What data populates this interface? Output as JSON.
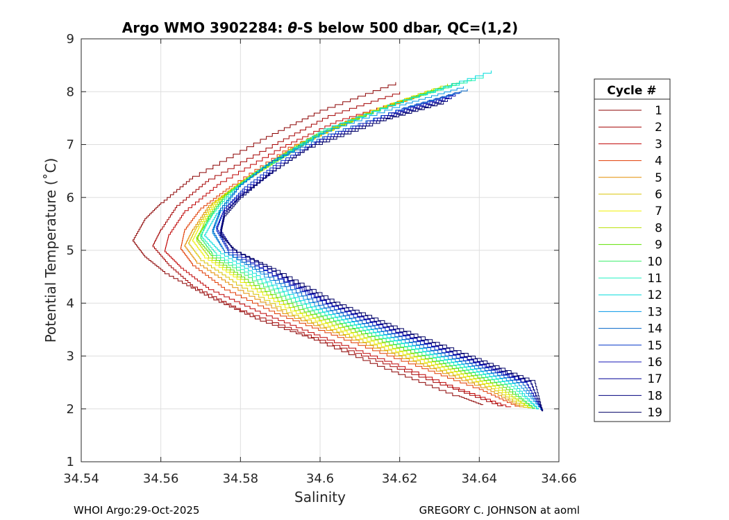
{
  "chart_data": {
    "type": "line",
    "title_prefix": "Argo WMO 3902284: ",
    "title_symbol": "θ",
    "title_suffix": "-S below 500 dbar,  QC=(1,2)",
    "xlabel": "Salinity",
    "ylabel": "Potential Temperature (˚C)",
    "xlim": [
      34.54,
      34.66
    ],
    "ylim": [
      1,
      9
    ],
    "xticks": [
      34.54,
      34.56,
      34.58,
      34.6,
      34.62,
      34.64,
      34.66
    ],
    "xtick_labels": [
      "34.54",
      "34.56",
      "34.58",
      "34.6",
      "34.62",
      "34.64",
      "34.66"
    ],
    "yticks": [
      1,
      2,
      3,
      4,
      5,
      6,
      7,
      8,
      9
    ],
    "ytick_labels": [
      "1",
      "2",
      "3",
      "4",
      "5",
      "6",
      "7",
      "8",
      "9"
    ],
    "grid": true,
    "legend_title": "Cycle #",
    "legend_position": "outside-right",
    "series": [
      {
        "name": "1",
        "color": "#8b0000",
        "points": [
          [
            34.619,
            8.18
          ],
          [
            34.6,
            7.65
          ],
          [
            34.585,
            7.1
          ],
          [
            34.568,
            6.4
          ],
          [
            34.56,
            5.9
          ],
          [
            34.556,
            5.6
          ],
          [
            34.553,
            5.2
          ],
          [
            34.556,
            4.9
          ],
          [
            34.561,
            4.6
          ],
          [
            34.572,
            4.15
          ],
          [
            34.585,
            3.7
          ],
          [
            34.6,
            3.3
          ],
          [
            34.618,
            2.75
          ],
          [
            34.635,
            2.25
          ],
          [
            34.641,
            2.08
          ]
        ]
      },
      {
        "name": "2",
        "color": "#a30000",
        "points": [
          [
            34.62,
            8.0
          ],
          [
            34.602,
            7.55
          ],
          [
            34.588,
            7.0
          ],
          [
            34.572,
            6.35
          ],
          [
            34.564,
            5.85
          ],
          [
            34.56,
            5.4
          ],
          [
            34.558,
            5.1
          ],
          [
            34.562,
            4.75
          ],
          [
            34.568,
            4.35
          ],
          [
            34.58,
            3.9
          ],
          [
            34.596,
            3.45
          ],
          [
            34.614,
            2.95
          ],
          [
            34.632,
            2.45
          ],
          [
            34.646,
            2.06
          ]
        ]
      },
      {
        "name": "3",
        "color": "#bf0000",
        "points": [
          [
            34.621,
            7.85
          ],
          [
            34.604,
            7.45
          ],
          [
            34.59,
            6.95
          ],
          [
            34.575,
            6.3
          ],
          [
            34.566,
            5.75
          ],
          [
            34.562,
            5.3
          ],
          [
            34.561,
            5.0
          ],
          [
            34.565,
            4.7
          ],
          [
            34.572,
            4.3
          ],
          [
            34.585,
            3.85
          ],
          [
            34.6,
            3.4
          ],
          [
            34.618,
            2.9
          ],
          [
            34.635,
            2.4
          ],
          [
            34.648,
            2.04
          ]
        ]
      },
      {
        "name": "4",
        "color": "#e03a00",
        "points": [
          [
            34.625,
            7.95
          ],
          [
            34.608,
            7.5
          ],
          [
            34.592,
            6.95
          ],
          [
            34.578,
            6.25
          ],
          [
            34.57,
            5.8
          ],
          [
            34.566,
            5.4
          ],
          [
            34.565,
            5.05
          ],
          [
            34.568,
            4.75
          ],
          [
            34.576,
            4.3
          ],
          [
            34.59,
            3.8
          ],
          [
            34.606,
            3.35
          ],
          [
            34.624,
            2.85
          ],
          [
            34.64,
            2.4
          ],
          [
            34.65,
            2.05
          ]
        ]
      },
      {
        "name": "5",
        "color": "#e38d00",
        "points": [
          [
            34.627,
            8.0
          ],
          [
            34.61,
            7.55
          ],
          [
            34.594,
            7.0
          ],
          [
            34.58,
            6.3
          ],
          [
            34.572,
            5.85
          ],
          [
            34.568,
            5.4
          ],
          [
            34.566,
            5.1
          ],
          [
            34.569,
            4.8
          ],
          [
            34.578,
            4.35
          ],
          [
            34.592,
            3.8
          ],
          [
            34.608,
            3.35
          ],
          [
            34.626,
            2.85
          ],
          [
            34.642,
            2.4
          ],
          [
            34.651,
            2.04
          ]
        ]
      },
      {
        "name": "6",
        "color": "#d9c300",
        "points": [
          [
            34.628,
            8.05
          ],
          [
            34.611,
            7.6
          ],
          [
            34.595,
            7.05
          ],
          [
            34.581,
            6.35
          ],
          [
            34.573,
            5.9
          ],
          [
            34.569,
            5.45
          ],
          [
            34.567,
            5.15
          ],
          [
            34.57,
            4.85
          ],
          [
            34.579,
            4.4
          ],
          [
            34.593,
            3.82
          ],
          [
            34.609,
            3.36
          ],
          [
            34.627,
            2.86
          ],
          [
            34.643,
            2.42
          ],
          [
            34.652,
            2.03
          ]
        ]
      },
      {
        "name": "7",
        "color": "#f0f000",
        "points": [
          [
            34.63,
            8.1
          ],
          [
            34.613,
            7.65
          ],
          [
            34.597,
            7.1
          ],
          [
            34.582,
            6.4
          ],
          [
            34.574,
            5.95
          ],
          [
            34.57,
            5.5
          ],
          [
            34.568,
            5.2
          ],
          [
            34.571,
            4.9
          ],
          [
            34.58,
            4.45
          ],
          [
            34.594,
            3.85
          ],
          [
            34.61,
            3.38
          ],
          [
            34.628,
            2.88
          ],
          [
            34.644,
            2.43
          ],
          [
            34.653,
            2.03
          ]
        ]
      },
      {
        "name": "8",
        "color": "#b8e000",
        "points": [
          [
            34.632,
            8.15
          ],
          [
            34.615,
            7.7
          ],
          [
            34.598,
            7.15
          ],
          [
            34.583,
            6.45
          ],
          [
            34.575,
            6.0
          ],
          [
            34.571,
            5.55
          ],
          [
            34.569,
            5.2
          ],
          [
            34.572,
            4.9
          ],
          [
            34.581,
            4.45
          ],
          [
            34.595,
            3.86
          ],
          [
            34.611,
            3.4
          ],
          [
            34.629,
            2.89
          ],
          [
            34.645,
            2.44
          ],
          [
            34.653,
            2.02
          ]
        ]
      },
      {
        "name": "9",
        "color": "#5de000",
        "points": [
          [
            34.635,
            8.2
          ],
          [
            34.617,
            7.75
          ],
          [
            34.599,
            7.2
          ],
          [
            34.584,
            6.5
          ],
          [
            34.576,
            6.05
          ],
          [
            34.572,
            5.6
          ],
          [
            34.569,
            5.25
          ],
          [
            34.573,
            4.9
          ],
          [
            34.582,
            4.45
          ],
          [
            34.596,
            3.88
          ],
          [
            34.612,
            3.42
          ],
          [
            34.63,
            2.9
          ],
          [
            34.646,
            2.45
          ],
          [
            34.654,
            2.02
          ]
        ]
      },
      {
        "name": "10",
        "color": "#33ee66",
        "points": [
          [
            34.638,
            8.25
          ],
          [
            34.619,
            7.8
          ],
          [
            34.6,
            7.25
          ],
          [
            34.585,
            6.55
          ],
          [
            34.577,
            6.1
          ],
          [
            34.572,
            5.65
          ],
          [
            34.57,
            5.25
          ],
          [
            34.573,
            4.95
          ],
          [
            34.583,
            4.48
          ],
          [
            34.597,
            3.9
          ],
          [
            34.613,
            3.43
          ],
          [
            34.631,
            2.91
          ],
          [
            34.647,
            2.46
          ],
          [
            34.654,
            2.01
          ]
        ]
      },
      {
        "name": "11",
        "color": "#1ef0c0",
        "points": [
          [
            34.641,
            8.3
          ],
          [
            34.621,
            7.85
          ],
          [
            34.601,
            7.3
          ],
          [
            34.586,
            6.6
          ],
          [
            34.578,
            6.15
          ],
          [
            34.573,
            5.7
          ],
          [
            34.57,
            5.3
          ],
          [
            34.574,
            4.95
          ],
          [
            34.584,
            4.5
          ],
          [
            34.598,
            3.92
          ],
          [
            34.614,
            3.44
          ],
          [
            34.632,
            2.92
          ],
          [
            34.648,
            2.47
          ],
          [
            34.655,
            2.01
          ]
        ]
      },
      {
        "name": "12",
        "color": "#00dcdc",
        "points": [
          [
            34.643,
            8.4
          ],
          [
            34.623,
            7.9
          ],
          [
            34.603,
            7.35
          ],
          [
            34.587,
            6.65
          ],
          [
            34.579,
            6.2
          ],
          [
            34.574,
            5.7
          ],
          [
            34.571,
            5.3
          ],
          [
            34.575,
            4.98
          ],
          [
            34.585,
            4.52
          ],
          [
            34.599,
            3.93
          ],
          [
            34.615,
            3.45
          ],
          [
            34.633,
            2.93
          ],
          [
            34.649,
            2.48
          ],
          [
            34.655,
            2.0
          ]
        ]
      },
      {
        "name": "13",
        "color": "#0096e6",
        "points": [
          [
            34.636,
            8.1
          ],
          [
            34.62,
            7.75
          ],
          [
            34.601,
            7.25
          ],
          [
            34.588,
            6.7
          ],
          [
            34.58,
            6.25
          ],
          [
            34.575,
            5.75
          ],
          [
            34.573,
            5.35
          ],
          [
            34.576,
            5.0
          ],
          [
            34.586,
            4.55
          ],
          [
            34.6,
            3.95
          ],
          [
            34.616,
            3.46
          ],
          [
            34.634,
            2.94
          ],
          [
            34.65,
            2.49
          ],
          [
            34.656,
            1.99
          ]
        ]
      },
      {
        "name": "14",
        "color": "#0064c8",
        "points": [
          [
            34.637,
            8.05
          ],
          [
            34.621,
            7.7
          ],
          [
            34.602,
            7.2
          ],
          [
            34.588,
            6.7
          ],
          [
            34.58,
            6.25
          ],
          [
            34.575,
            5.8
          ],
          [
            34.573,
            5.4
          ],
          [
            34.576,
            5.0
          ],
          [
            34.587,
            4.55
          ],
          [
            34.601,
            3.96
          ],
          [
            34.617,
            3.47
          ],
          [
            34.635,
            2.95
          ],
          [
            34.651,
            2.5
          ],
          [
            34.656,
            1.99
          ]
        ]
      },
      {
        "name": "15",
        "color": "#0032c8",
        "points": [
          [
            34.635,
            8.0
          ],
          [
            34.619,
            7.65
          ],
          [
            34.601,
            7.15
          ],
          [
            34.589,
            6.65
          ],
          [
            34.581,
            6.2
          ],
          [
            34.576,
            5.8
          ],
          [
            34.574,
            5.4
          ],
          [
            34.577,
            5.0
          ],
          [
            34.588,
            4.57
          ],
          [
            34.602,
            3.98
          ],
          [
            34.618,
            3.48
          ],
          [
            34.636,
            2.96
          ],
          [
            34.652,
            2.5
          ],
          [
            34.656,
            1.98
          ]
        ]
      },
      {
        "name": "16",
        "color": "#1414b4",
        "points": [
          [
            34.634,
            7.95
          ],
          [
            34.618,
            7.6
          ],
          [
            34.6,
            7.1
          ],
          [
            34.589,
            6.6
          ],
          [
            34.581,
            6.15
          ],
          [
            34.576,
            5.8
          ],
          [
            34.574,
            5.45
          ],
          [
            34.577,
            5.05
          ],
          [
            34.588,
            4.58
          ],
          [
            34.603,
            3.99
          ],
          [
            34.619,
            3.49
          ],
          [
            34.637,
            2.97
          ],
          [
            34.652,
            2.51
          ],
          [
            34.656,
            1.98
          ]
        ]
      },
      {
        "name": "17",
        "color": "#000096",
        "points": [
          [
            34.633,
            7.9
          ],
          [
            34.617,
            7.55
          ],
          [
            34.599,
            7.05
          ],
          [
            34.589,
            6.55
          ],
          [
            34.581,
            6.1
          ],
          [
            34.576,
            5.75
          ],
          [
            34.575,
            5.4
          ],
          [
            34.578,
            5.05
          ],
          [
            34.589,
            4.6
          ],
          [
            34.603,
            4.0
          ],
          [
            34.619,
            3.5
          ],
          [
            34.637,
            2.98
          ],
          [
            34.653,
            2.52
          ],
          [
            34.656,
            1.97
          ]
        ]
      },
      {
        "name": "18",
        "color": "#00007d",
        "points": [
          [
            34.632,
            7.85
          ],
          [
            34.616,
            7.5
          ],
          [
            34.598,
            7.0
          ],
          [
            34.588,
            6.5
          ],
          [
            34.58,
            6.05
          ],
          [
            34.576,
            5.7
          ],
          [
            34.575,
            5.35
          ],
          [
            34.578,
            5.05
          ],
          [
            34.589,
            4.61
          ],
          [
            34.604,
            4.01
          ],
          [
            34.62,
            3.51
          ],
          [
            34.638,
            2.99
          ],
          [
            34.653,
            2.53
          ],
          [
            34.656,
            1.97
          ]
        ]
      },
      {
        "name": "19",
        "color": "#000064",
        "points": [
          [
            34.631,
            7.8
          ],
          [
            34.615,
            7.45
          ],
          [
            34.597,
            6.95
          ],
          [
            34.587,
            6.45
          ],
          [
            34.58,
            6.0
          ],
          [
            34.576,
            5.65
          ],
          [
            34.575,
            5.3
          ],
          [
            34.579,
            5.0
          ],
          [
            34.59,
            4.62
          ],
          [
            34.605,
            4.02
          ],
          [
            34.621,
            3.52
          ],
          [
            34.639,
            3.0
          ],
          [
            34.654,
            2.54
          ],
          [
            34.656,
            1.96
          ]
        ]
      }
    ]
  },
  "footer": {
    "left": "WHOI Argo:29-Oct-2025",
    "right": "GREGORY C. JOHNSON at aoml"
  }
}
